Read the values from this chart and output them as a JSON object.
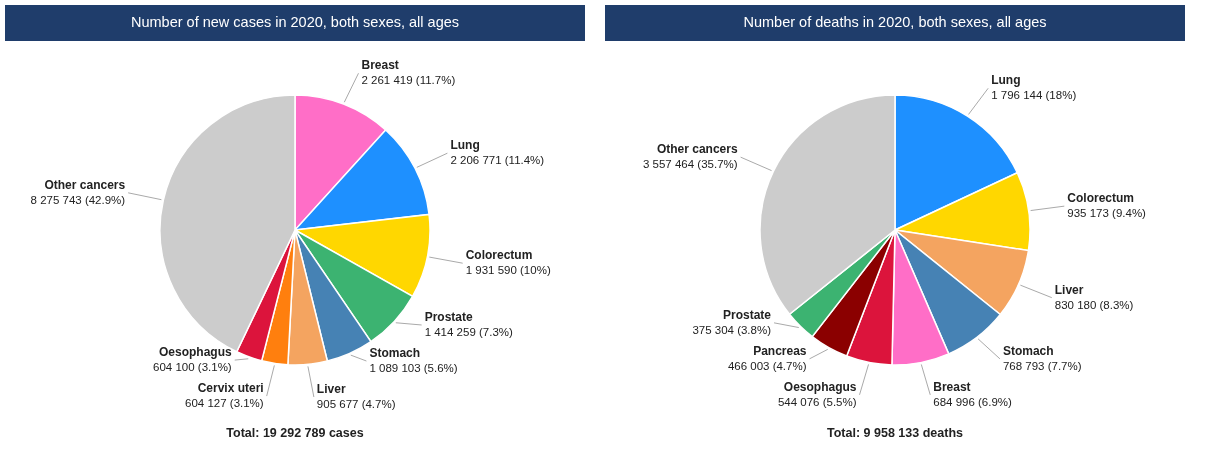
{
  "chart_data": [
    {
      "type": "pie",
      "title": "Number of new cases in 2020, both sexes, all ages",
      "categories": [
        "Breast",
        "Lung",
        "Colorectum",
        "Prostate",
        "Stomach",
        "Liver",
        "Cervix uteri",
        "Oesophagus",
        "Other cancers"
      ],
      "values": [
        2261419,
        2206771,
        1931590,
        1414259,
        1089103,
        905677,
        604127,
        604100,
        8275743
      ],
      "colors": [
        "#ff6ec7",
        "#1e90ff",
        "#ffd700",
        "#3cb371",
        "#4682b4",
        "#f4a460",
        "#ff7f0e",
        "#dc143c",
        "#cccccc"
      ],
      "value_labels": [
        "2 261 419 (11.7%)",
        "2 206 771 (11.4%)",
        "1 931 590 (10%)",
        "1 414 259 (7.3%)",
        "1 089 103 (5.6%)",
        "905 677 (4.7%)",
        "604 127 (3.1%)",
        "604 100 (3.1%)",
        "8 275 743 (42.9%)"
      ],
      "annotations": [
        "Total: 19 292 789 cases"
      ]
    },
    {
      "type": "pie",
      "title": "Number of deaths in 2020, both sexes, all ages",
      "categories": [
        "Lung",
        "Colorectum",
        "Liver",
        "Stomach",
        "Breast",
        "Oesophagus",
        "Pancreas",
        "Prostate",
        "Other cancers"
      ],
      "values": [
        1796144,
        935173,
        830180,
        768793,
        684996,
        544076,
        466003,
        375304,
        3557464
      ],
      "colors": [
        "#1e90ff",
        "#ffd700",
        "#f4a460",
        "#4682b4",
        "#ff6ec7",
        "#dc143c",
        "#8b0000",
        "#3cb371",
        "#cccccc"
      ],
      "value_labels": [
        "1 796 144 (18%)",
        "935 173 (9.4%)",
        "830 180 (8.3%)",
        "768 793 (7.7%)",
        "684 996 (6.9%)",
        "544 076 (5.5%)",
        "466 003 (4.7%)",
        "375 304 (3.8%)",
        "3 557 464 (35.7%)"
      ],
      "annotations": [
        "Total: 9 958 133 deaths"
      ]
    }
  ]
}
